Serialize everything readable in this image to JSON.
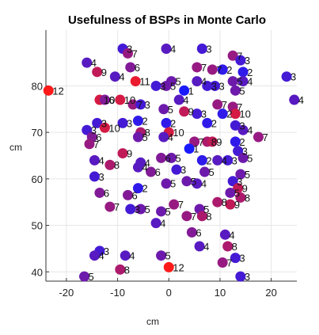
{
  "chart_data": {
    "type": "scatter",
    "title": "Usefulness of BSPs in Monte Carlo",
    "xlabel": "cm",
    "ylabel": "cm",
    "xlim": [
      -24,
      25
    ],
    "ylim": [
      38,
      92
    ],
    "xticks": [
      -20,
      -10,
      0,
      10,
      20
    ],
    "yticks": [
      40,
      50,
      60,
      70,
      80
    ],
    "grid": true,
    "color_scale": {
      "min": 1,
      "max": 12,
      "low_color": "#1a1aff",
      "high_color": "#ff1a1a"
    },
    "points": [
      {
        "x": -9.0,
        "y": 88.0,
        "v": 3
      },
      {
        "x": -8.0,
        "y": 87.0,
        "v": 7
      },
      {
        "x": -0.5,
        "y": 88.0,
        "v": 4
      },
      {
        "x": 6.5,
        "y": 88.0,
        "v": 3
      },
      {
        "x": 12.5,
        "y": 86.5,
        "v": 7
      },
      {
        "x": 14.0,
        "y": 85.5,
        "v": 3
      },
      {
        "x": -16.0,
        "y": 85.0,
        "v": 4
      },
      {
        "x": -7.5,
        "y": 84.0,
        "v": 6
      },
      {
        "x": -14.0,
        "y": 83.0,
        "v": 9
      },
      {
        "x": 5.5,
        "y": 84.0,
        "v": 7
      },
      {
        "x": 8.5,
        "y": 83.5,
        "v": 7
      },
      {
        "x": 10.5,
        "y": 83.5,
        "v": 2
      },
      {
        "x": 14.5,
        "y": 83.0,
        "v": 2
      },
      {
        "x": -10.5,
        "y": 82.0,
        "v": 4
      },
      {
        "x": -6.5,
        "y": 81.0,
        "v": 11
      },
      {
        "x": -2.5,
        "y": 80.0,
        "v": 3
      },
      {
        "x": -0.5,
        "y": 80.0,
        "v": 5
      },
      {
        "x": 0.5,
        "y": 81.0,
        "v": 5
      },
      {
        "x": 5.5,
        "y": 81.0,
        "v": 4
      },
      {
        "x": 7.5,
        "y": 80.0,
        "v": 3
      },
      {
        "x": 9.0,
        "y": 80.0,
        "v": 3
      },
      {
        "x": 12.5,
        "y": 81.0,
        "v": 5
      },
      {
        "x": 14.5,
        "y": 81.0,
        "v": 4
      },
      {
        "x": 23.0,
        "y": 82.0,
        "v": 3
      },
      {
        "x": -23.5,
        "y": 79.0,
        "v": 12
      },
      {
        "x": 3.0,
        "y": 79.0,
        "v": 1
      },
      {
        "x": 13.0,
        "y": 79.0,
        "v": 5
      },
      {
        "x": -13.5,
        "y": 77.0,
        "v": 10
      },
      {
        "x": -12.5,
        "y": 77.0,
        "v": 6
      },
      {
        "x": -9.5,
        "y": 77.0,
        "v": 10
      },
      {
        "x": -7.0,
        "y": 76.0,
        "v": 7
      },
      {
        "x": -5.5,
        "y": 76.0,
        "v": 3
      },
      {
        "x": 2.0,
        "y": 77.0,
        "v": 4
      },
      {
        "x": 9.5,
        "y": 76.0,
        "v": 7
      },
      {
        "x": 12.5,
        "y": 75.5,
        "v": 7
      },
      {
        "x": 24.5,
        "y": 77.0,
        "v": 4
      },
      {
        "x": -1.0,
        "y": 75.0,
        "v": 5
      },
      {
        "x": 3.0,
        "y": 74.5,
        "v": 9
      },
      {
        "x": 5.5,
        "y": 74.0,
        "v": 3
      },
      {
        "x": 10.5,
        "y": 74.0,
        "v": 2
      },
      {
        "x": 13.0,
        "y": 74.0,
        "v": 10
      },
      {
        "x": -14.0,
        "y": 72.0,
        "v": 3
      },
      {
        "x": -12.5,
        "y": 71.0,
        "v": 10
      },
      {
        "x": -9.0,
        "y": 72.0,
        "v": 3
      },
      {
        "x": -6.0,
        "y": 72.5,
        "v": 2
      },
      {
        "x": -0.5,
        "y": 72.0,
        "v": 2
      },
      {
        "x": 7.5,
        "y": 72.0,
        "v": 2
      },
      {
        "x": 13.0,
        "y": 71.5,
        "v": 3
      },
      {
        "x": -16.0,
        "y": 70.5,
        "v": 3
      },
      {
        "x": -5.5,
        "y": 70.0,
        "v": 8
      },
      {
        "x": 0.0,
        "y": 70.0,
        "v": 10
      },
      {
        "x": 14.5,
        "y": 70.5,
        "v": 4
      },
      {
        "x": 17.5,
        "y": 69.0,
        "v": 7
      },
      {
        "x": -15.0,
        "y": 69.0,
        "v": 6
      },
      {
        "x": -6.0,
        "y": 69.0,
        "v": 5
      },
      {
        "x": -1.0,
        "y": 69.0,
        "v": 4
      },
      {
        "x": 5.0,
        "y": 68.0,
        "v": 7
      },
      {
        "x": 7.5,
        "y": 68.0,
        "v": 8
      },
      {
        "x": 8.5,
        "y": 68.0,
        "v": 9
      },
      {
        "x": 13.0,
        "y": 68.0,
        "v": 2
      },
      {
        "x": -15.5,
        "y": 67.5,
        "v": 7
      },
      {
        "x": 4.0,
        "y": 66.5,
        "v": 1
      },
      {
        "x": 13.5,
        "y": 66.0,
        "v": 3
      },
      {
        "x": -9.0,
        "y": 65.5,
        "v": 9
      },
      {
        "x": -5.5,
        "y": 63.5,
        "v": 4
      },
      {
        "x": -1.5,
        "y": 64.5,
        "v": 6
      },
      {
        "x": 0.5,
        "y": 64.5,
        "v": 5
      },
      {
        "x": 6.5,
        "y": 64.0,
        "v": 2
      },
      {
        "x": 9.5,
        "y": 64.0,
        "v": 4
      },
      {
        "x": 11.5,
        "y": 64.0,
        "v": 3
      },
      {
        "x": 14.5,
        "y": 64.5,
        "v": 5
      },
      {
        "x": -14.5,
        "y": 64.0,
        "v": 4
      },
      {
        "x": -11.5,
        "y": 63.0,
        "v": 8
      },
      {
        "x": -6.0,
        "y": 62.5,
        "v": 4
      },
      {
        "x": -3.5,
        "y": 61.5,
        "v": 6
      },
      {
        "x": 1.5,
        "y": 62.0,
        "v": 3
      },
      {
        "x": 7.0,
        "y": 61.5,
        "v": 5
      },
      {
        "x": 14.0,
        "y": 61.0,
        "v": 5
      },
      {
        "x": -14.5,
        "y": 60.5,
        "v": 3
      },
      {
        "x": 3.5,
        "y": 59.5,
        "v": 5
      },
      {
        "x": 12.5,
        "y": 59.5,
        "v": 3
      },
      {
        "x": -0.5,
        "y": 59.0,
        "v": 5
      },
      {
        "x": 5.5,
        "y": 59.0,
        "v": 4
      },
      {
        "x": 13.5,
        "y": 58.0,
        "v": 9
      },
      {
        "x": -6.0,
        "y": 58.0,
        "v": 2
      },
      {
        "x": -13.5,
        "y": 57.0,
        "v": 6
      },
      {
        "x": -8.0,
        "y": 56.5,
        "v": 6
      },
      {
        "x": 12.0,
        "y": 57.0,
        "v": 5
      },
      {
        "x": 14.0,
        "y": 56.0,
        "v": 8
      },
      {
        "x": 9.5,
        "y": 55.0,
        "v": 8
      },
      {
        "x": 12.0,
        "y": 54.5,
        "v": 9
      },
      {
        "x": -11.5,
        "y": 54.0,
        "v": 7
      },
      {
        "x": -7.5,
        "y": 53.5,
        "v": 3
      },
      {
        "x": -5.5,
        "y": 53.5,
        "v": 5
      },
      {
        "x": -1.5,
        "y": 53.0,
        "v": 5
      },
      {
        "x": 1.0,
        "y": 54.5,
        "v": 7
      },
      {
        "x": 6.0,
        "y": 53.5,
        "v": 5
      },
      {
        "x": 3.5,
        "y": 52.0,
        "v": 7
      },
      {
        "x": 6.5,
        "y": 52.0,
        "v": 8
      },
      {
        "x": -2.5,
        "y": 50.5,
        "v": 4
      },
      {
        "x": 4.5,
        "y": 48.5,
        "v": 6
      },
      {
        "x": 11.0,
        "y": 48.0,
        "v": 4
      },
      {
        "x": 6.0,
        "y": 45.5,
        "v": 4
      },
      {
        "x": 11.5,
        "y": 45.5,
        "v": 8
      },
      {
        "x": -13.5,
        "y": 44.5,
        "v": 3
      },
      {
        "x": -14.5,
        "y": 43.5,
        "v": 4
      },
      {
        "x": -8.5,
        "y": 43.5,
        "v": 4
      },
      {
        "x": -1.5,
        "y": 43.5,
        "v": 5
      },
      {
        "x": 13.0,
        "y": 43.0,
        "v": 3
      },
      {
        "x": -9.5,
        "y": 40.5,
        "v": 8
      },
      {
        "x": 0.0,
        "y": 41.0,
        "v": 12
      },
      {
        "x": 10.5,
        "y": 42.0,
        "v": 7
      },
      {
        "x": -16.5,
        "y": 39.0,
        "v": 5
      },
      {
        "x": 14.0,
        "y": 39.0,
        "v": 3
      }
    ]
  }
}
